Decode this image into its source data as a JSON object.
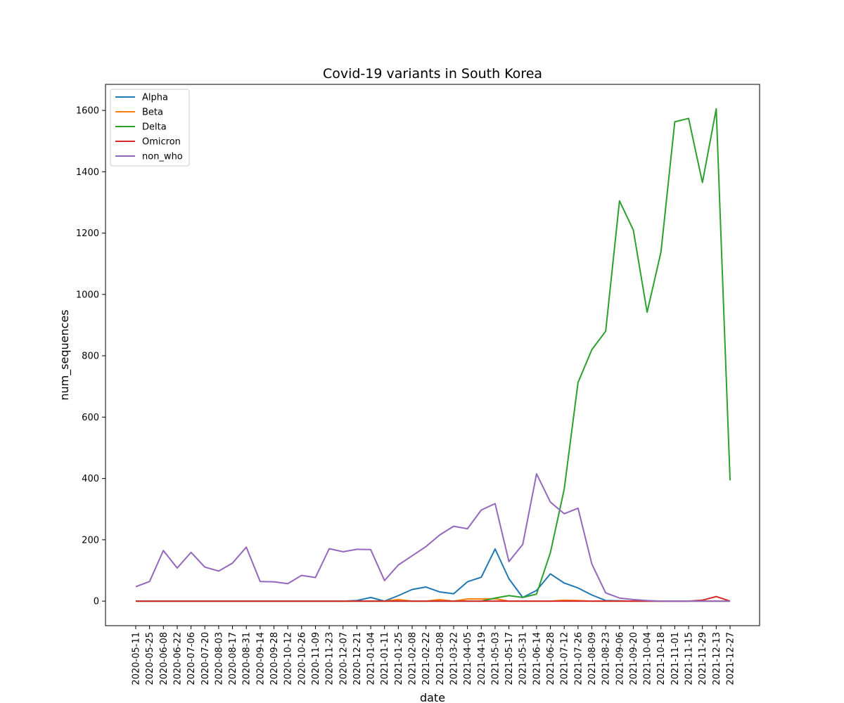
{
  "chart_data": {
    "type": "line",
    "title": "Covid-19 variants in South Korea",
    "xlabel": "date",
    "ylabel": "num_sequences",
    "ylim": [
      -80,
      1685
    ],
    "yticks": [
      0,
      200,
      400,
      600,
      800,
      1000,
      1200,
      1400,
      1600
    ],
    "grid": false,
    "legend_position": "top-left",
    "x": [
      "2020-05-11",
      "2020-05-25",
      "2020-06-08",
      "2020-06-22",
      "2020-07-06",
      "2020-07-20",
      "2020-08-03",
      "2020-08-17",
      "2020-08-31",
      "2020-09-14",
      "2020-09-28",
      "2020-10-12",
      "2020-10-26",
      "2020-11-09",
      "2020-11-23",
      "2020-12-07",
      "2020-12-21",
      "2021-01-04",
      "2021-01-11",
      "2021-01-25",
      "2021-02-08",
      "2021-02-22",
      "2021-03-08",
      "2021-03-22",
      "2021-04-05",
      "2021-04-19",
      "2021-05-03",
      "2021-05-17",
      "2021-05-31",
      "2021-06-14",
      "2021-06-28",
      "2021-07-12",
      "2021-07-26",
      "2021-08-09",
      "2021-08-23",
      "2021-09-06",
      "2021-09-20",
      "2021-10-04",
      "2021-10-18",
      "2021-11-01",
      "2021-11-15",
      "2021-11-29",
      "2021-12-13",
      "2021-12-27"
    ],
    "series": [
      {
        "name": "Alpha",
        "color": "#1f77b4",
        "values": [
          0,
          0,
          0,
          0,
          0,
          0,
          0,
          0,
          0,
          0,
          0,
          0,
          0,
          0,
          0,
          0,
          2,
          12,
          0,
          18,
          38,
          46,
          30,
          24,
          63,
          78,
          170,
          73,
          12,
          35,
          89,
          59,
          43,
          20,
          2,
          1,
          0,
          0,
          0,
          0,
          0,
          0,
          0,
          0
        ]
      },
      {
        "name": "Beta",
        "color": "#ff7f0e",
        "values": [
          0,
          0,
          0,
          0,
          0,
          0,
          0,
          0,
          0,
          0,
          0,
          0,
          0,
          0,
          0,
          0,
          0,
          0,
          0,
          5,
          0,
          0,
          5,
          0,
          7,
          7,
          8,
          0,
          0,
          0,
          0,
          3,
          2,
          0,
          0,
          0,
          0,
          0,
          0,
          0,
          0,
          0,
          0,
          0
        ]
      },
      {
        "name": "Delta",
        "color": "#2ca02c",
        "values": [
          0,
          0,
          0,
          0,
          0,
          0,
          0,
          0,
          0,
          0,
          0,
          0,
          0,
          0,
          0,
          0,
          0,
          0,
          0,
          0,
          0,
          0,
          0,
          0,
          0,
          0,
          10,
          18,
          12,
          23,
          158,
          365,
          713,
          820,
          880,
          1305,
          1210,
          942,
          1138,
          1563,
          1574,
          1365,
          1605,
          394
        ]
      },
      {
        "name": "Omicron",
        "color": "#d62728",
        "values": [
          0,
          0,
          0,
          0,
          0,
          0,
          0,
          0,
          0,
          0,
          0,
          0,
          0,
          0,
          0,
          0,
          0,
          0,
          0,
          0,
          0,
          0,
          0,
          0,
          0,
          0,
          0,
          0,
          0,
          0,
          0,
          0,
          0,
          0,
          0,
          0,
          0,
          0,
          0,
          0,
          0,
          3,
          15,
          0
        ]
      },
      {
        "name": "non_who",
        "color": "#9467bd",
        "values": [
          47,
          64,
          165,
          108,
          159,
          111,
          98,
          124,
          176,
          64,
          63,
          57,
          84,
          77,
          171,
          161,
          169,
          168,
          67,
          118,
          148,
          178,
          216,
          244,
          236,
          297,
          318,
          129,
          185,
          415,
          323,
          285,
          303,
          121,
          27,
          10,
          5,
          2,
          0,
          0,
          0,
          0,
          0,
          0
        ]
      }
    ]
  }
}
